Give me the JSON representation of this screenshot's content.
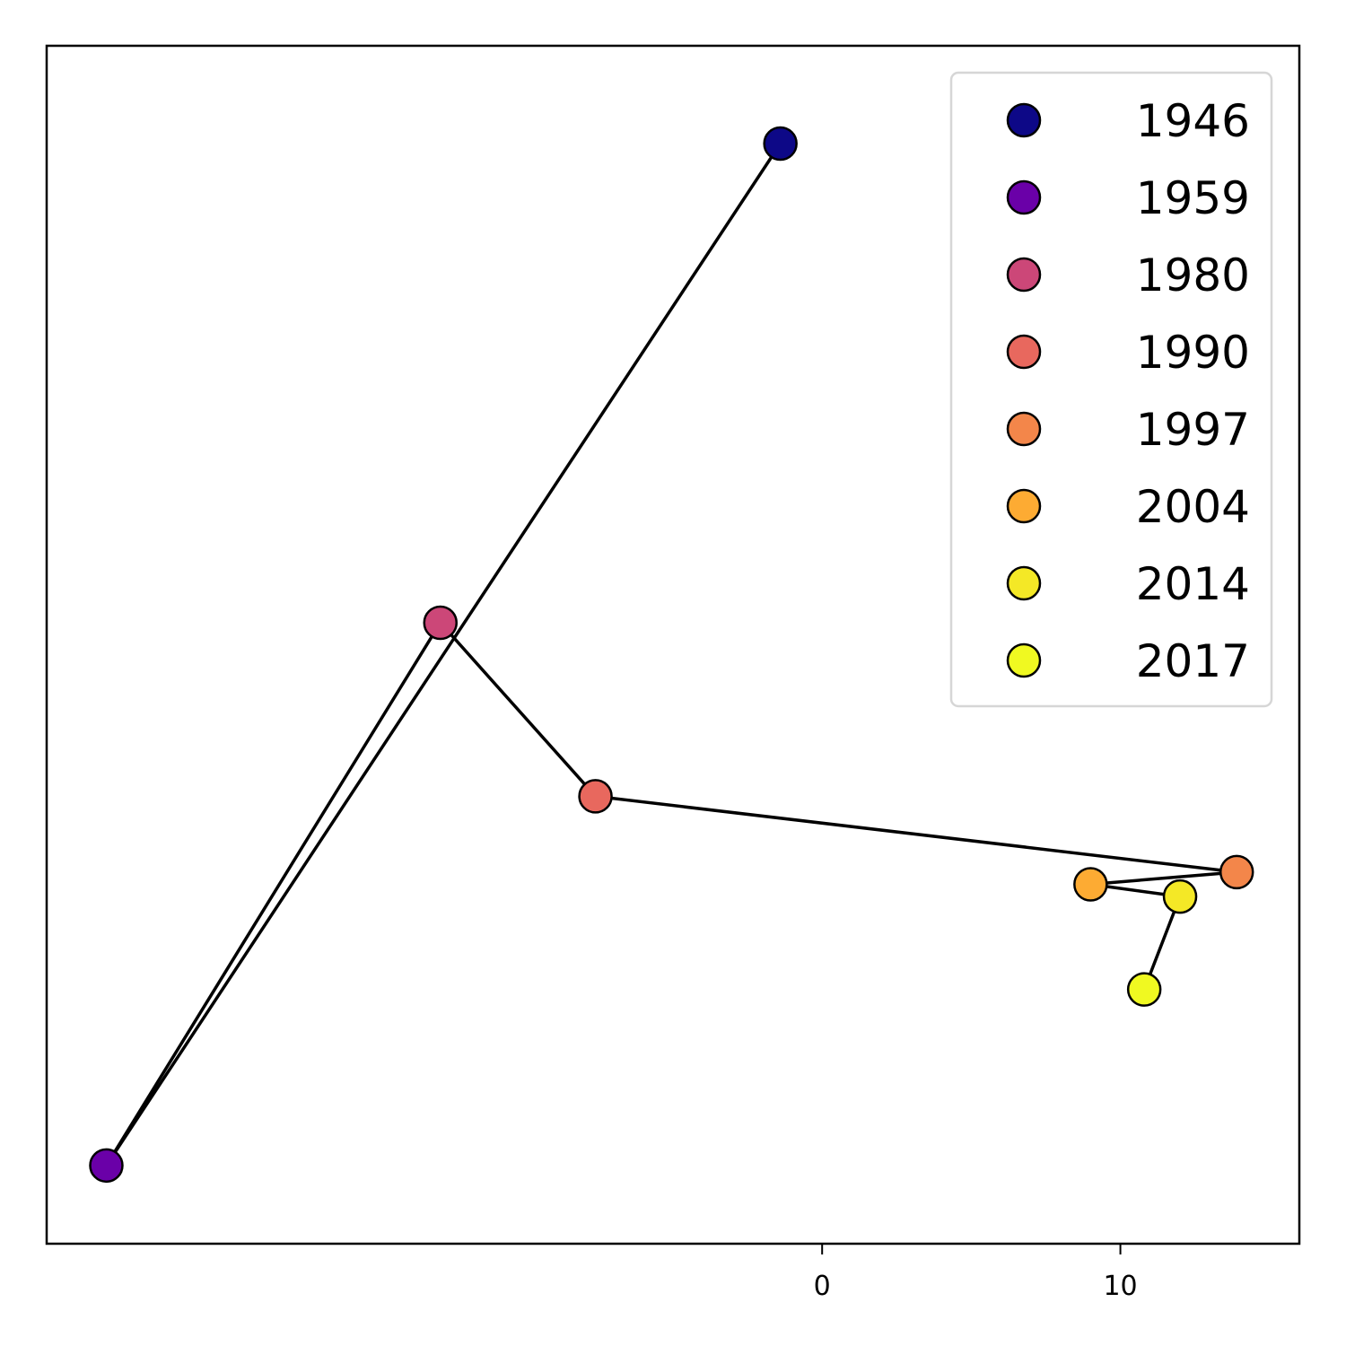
{
  "chart_data": {
    "type": "scatter",
    "title": "",
    "xlabel": "",
    "ylabel": "",
    "xlim": [
      -26.0,
      16.0
    ],
    "ylim": [
      -13.3,
      11.2
    ],
    "x_ticks": [
      {
        "value": 0,
        "label": "0"
      },
      {
        "value": 10,
        "label": "10"
      }
    ],
    "y_ticks": [],
    "connected": true,
    "line_color": "#000000",
    "legend": {
      "position": "top-right"
    },
    "points": [
      {
        "label": "1946",
        "x": -1.4,
        "y": 9.2,
        "color": "#0d0887"
      },
      {
        "label": "1959",
        "x": -24.0,
        "y": -11.7,
        "color": "#6a00a8"
      },
      {
        "label": "1980",
        "x": -12.8,
        "y": -0.6,
        "color": "#cc4778"
      },
      {
        "label": "1990",
        "x": -7.6,
        "y": -4.15,
        "color": "#e8685e"
      },
      {
        "label": "1997",
        "x": 13.9,
        "y": -5.7,
        "color": "#f3864a"
      },
      {
        "label": "2004",
        "x": 9.0,
        "y": -5.95,
        "color": "#fdab33"
      },
      {
        "label": "2014",
        "x": 12.0,
        "y": -6.2,
        "color": "#f4e826"
      },
      {
        "label": "2017",
        "x": 10.8,
        "y": -8.1,
        "color": "#f0f921"
      }
    ]
  }
}
